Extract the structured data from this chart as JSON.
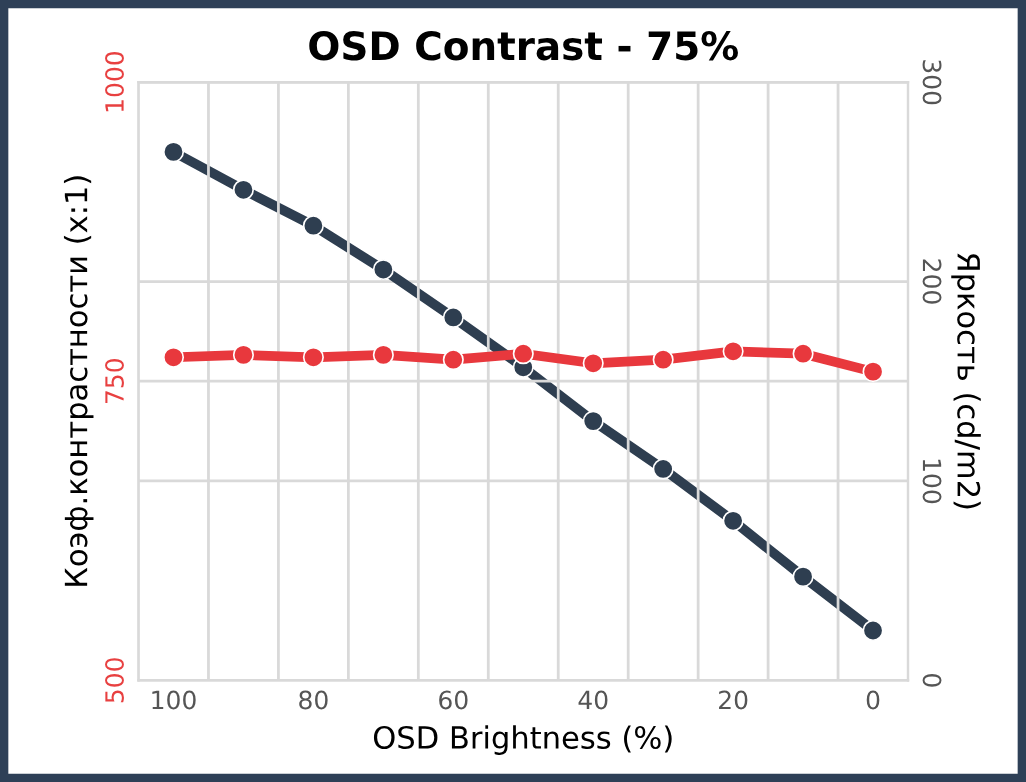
{
  "chart_data": {
    "type": "line",
    "title": "OSD Contrast - 75%",
    "xlabel": "OSD Brightness (%)",
    "ylabel": "Коэф.контрастности (x:1)",
    "y2label": "Яркость (cd/m2)",
    "categories": [
      "100",
      null,
      "80",
      null,
      "60",
      null,
      "40",
      null,
      "20",
      null,
      "0"
    ],
    "series": [
      {
        "color": "#e8383d",
        "values": [
          770,
          772,
          770,
          772,
          768,
          773,
          765,
          768,
          775,
          773,
          758
        ]
      },
      {
        "color": "#2e3e50",
        "axis": "y2",
        "values": [
          265,
          246,
          228,
          206,
          182,
          157,
          130,
          106,
          80,
          52,
          25
        ]
      }
    ],
    "ylim": [
      500,
      1000
    ],
    "yticks": [
      500,
      750,
      1000
    ],
    "y2lim": [
      0,
      300
    ],
    "y2ticks": [
      0,
      100,
      200,
      300
    ],
    "grid": true,
    "marker": "circle",
    "line_style": "solid"
  }
}
